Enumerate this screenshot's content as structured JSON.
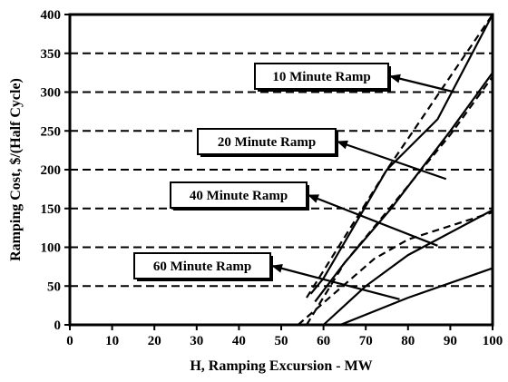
{
  "chart_data": {
    "type": "line",
    "title": "",
    "xlabel": "H, Ramping Excursion - MW",
    "ylabel": "Ramping Cost, $/(Half Cycle)",
    "xlim": [
      0,
      100
    ],
    "ylim": [
      0,
      400
    ],
    "xticks": [
      0,
      10,
      20,
      30,
      40,
      50,
      60,
      70,
      80,
      90,
      100
    ],
    "yticks": [
      0,
      50,
      100,
      150,
      200,
      250,
      300,
      350,
      400
    ],
    "grid": "horizontal dashed",
    "series": [
      {
        "label": "10 Minute Ramp",
        "solid": [
          [
            57,
            40
          ],
          [
            60,
            60
          ],
          [
            67,
            125
          ],
          [
            75,
            200
          ],
          [
            87,
            265
          ],
          [
            100,
            400
          ]
        ],
        "dashed": [
          [
            56,
            35
          ],
          [
            75,
            200
          ],
          [
            100,
            400
          ]
        ]
      },
      {
        "label": "20 Minute Ramp",
        "solid": [
          [
            58,
            30
          ],
          [
            65,
            80
          ],
          [
            76,
            150
          ],
          [
            90,
            250
          ],
          [
            100,
            325
          ]
        ],
        "dashed": [
          [
            56,
            0
          ],
          [
            65,
            80
          ],
          [
            90,
            245
          ],
          [
            100,
            320
          ]
        ]
      },
      {
        "label": "40 Minute Ramp",
        "solid": [
          [
            60,
            0
          ],
          [
            70,
            50
          ],
          [
            80,
            90
          ],
          [
            100,
            148
          ]
        ],
        "dashed": [
          [
            54,
            0
          ],
          [
            72,
            85
          ],
          [
            80,
            110
          ],
          [
            100,
            145
          ]
        ]
      },
      {
        "label": "60 Minute Ramp",
        "solid": [
          [
            64,
            0
          ],
          [
            80,
            35
          ],
          [
            100,
            73
          ]
        ],
        "dashed": []
      }
    ],
    "annotations": [
      {
        "text": "10 Minute Ramp",
        "arrow_to": [
          91,
          300
        ]
      },
      {
        "text": "20 Minute Ramp",
        "arrow_to": [
          89,
          188
        ]
      },
      {
        "text": "40 Minute Ramp",
        "arrow_to": [
          87,
          102
        ]
      },
      {
        "text": "60 Minute Ramp",
        "arrow_to": [
          78,
          33
        ]
      }
    ]
  }
}
